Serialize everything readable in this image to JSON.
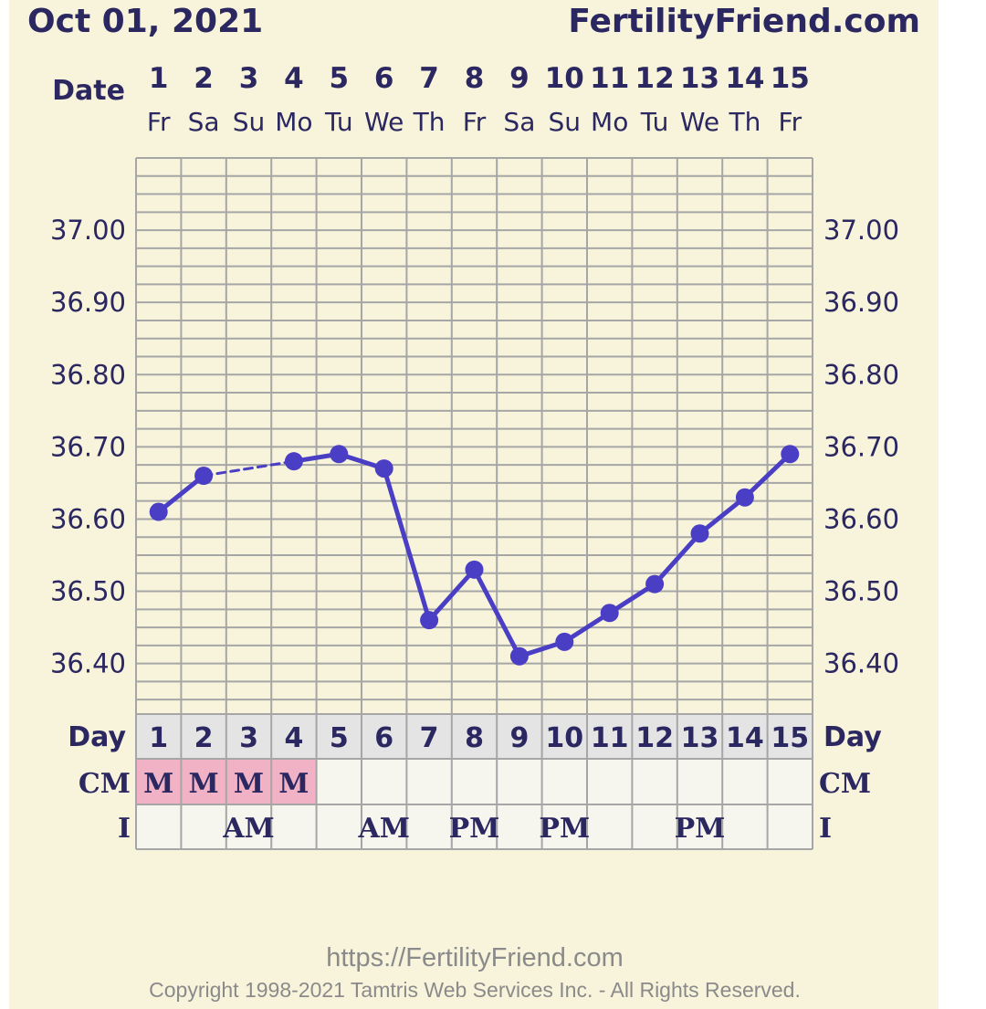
{
  "header": {
    "date": "Oct 01, 2021",
    "site": "FertilityFriend.com",
    "date_row_label": "Date"
  },
  "chart_data": {
    "type": "line",
    "title": "",
    "x": [
      1,
      2,
      3,
      4,
      5,
      6,
      7,
      8,
      9,
      10,
      11,
      12,
      13,
      14,
      15
    ],
    "weekdays": [
      "Fr",
      "Sa",
      "Su",
      "Mo",
      "Tu",
      "We",
      "Th",
      "Fr",
      "Sa",
      "Su",
      "Mo",
      "Tu",
      "We",
      "Th",
      "Fr"
    ],
    "series": [
      {
        "values": [
          36.61,
          36.66,
          null,
          36.68,
          36.69,
          36.67,
          36.46,
          36.53,
          36.41,
          36.43,
          36.47,
          36.51,
          36.58,
          36.63,
          36.69
        ]
      }
    ],
    "gap_style": "dashed",
    "yticks": [
      "37.00",
      "36.90",
      "36.80",
      "36.70",
      "36.60",
      "36.50",
      "36.40"
    ],
    "ylim": [
      36.33,
      37.1
    ],
    "grid": true,
    "line_color": "#4a3fc4",
    "grid_color": "#a6a6a6"
  },
  "rows": {
    "day": {
      "label": "Day",
      "values": [
        "1",
        "2",
        "3",
        "4",
        "5",
        "6",
        "7",
        "8",
        "9",
        "10",
        "11",
        "12",
        "13",
        "14",
        "15"
      ]
    },
    "cm": {
      "label": "CM",
      "values": [
        "M",
        "M",
        "M",
        "M",
        "",
        "",
        "",
        "",
        "",
        "",
        "",
        "",
        "",
        "",
        ""
      ],
      "marked_color": "#f2b2c6"
    },
    "i": {
      "label": "I",
      "values": [
        "",
        "",
        "AM",
        "",
        "",
        "AM",
        "",
        "PM",
        "",
        "PM",
        "",
        "",
        "PM",
        "",
        ""
      ]
    }
  },
  "footer": {
    "url": "https://FertilityFriend.com",
    "copyright": "Copyright 1998-2021 Tamtris Web Services Inc. - All Rights Reserved."
  }
}
